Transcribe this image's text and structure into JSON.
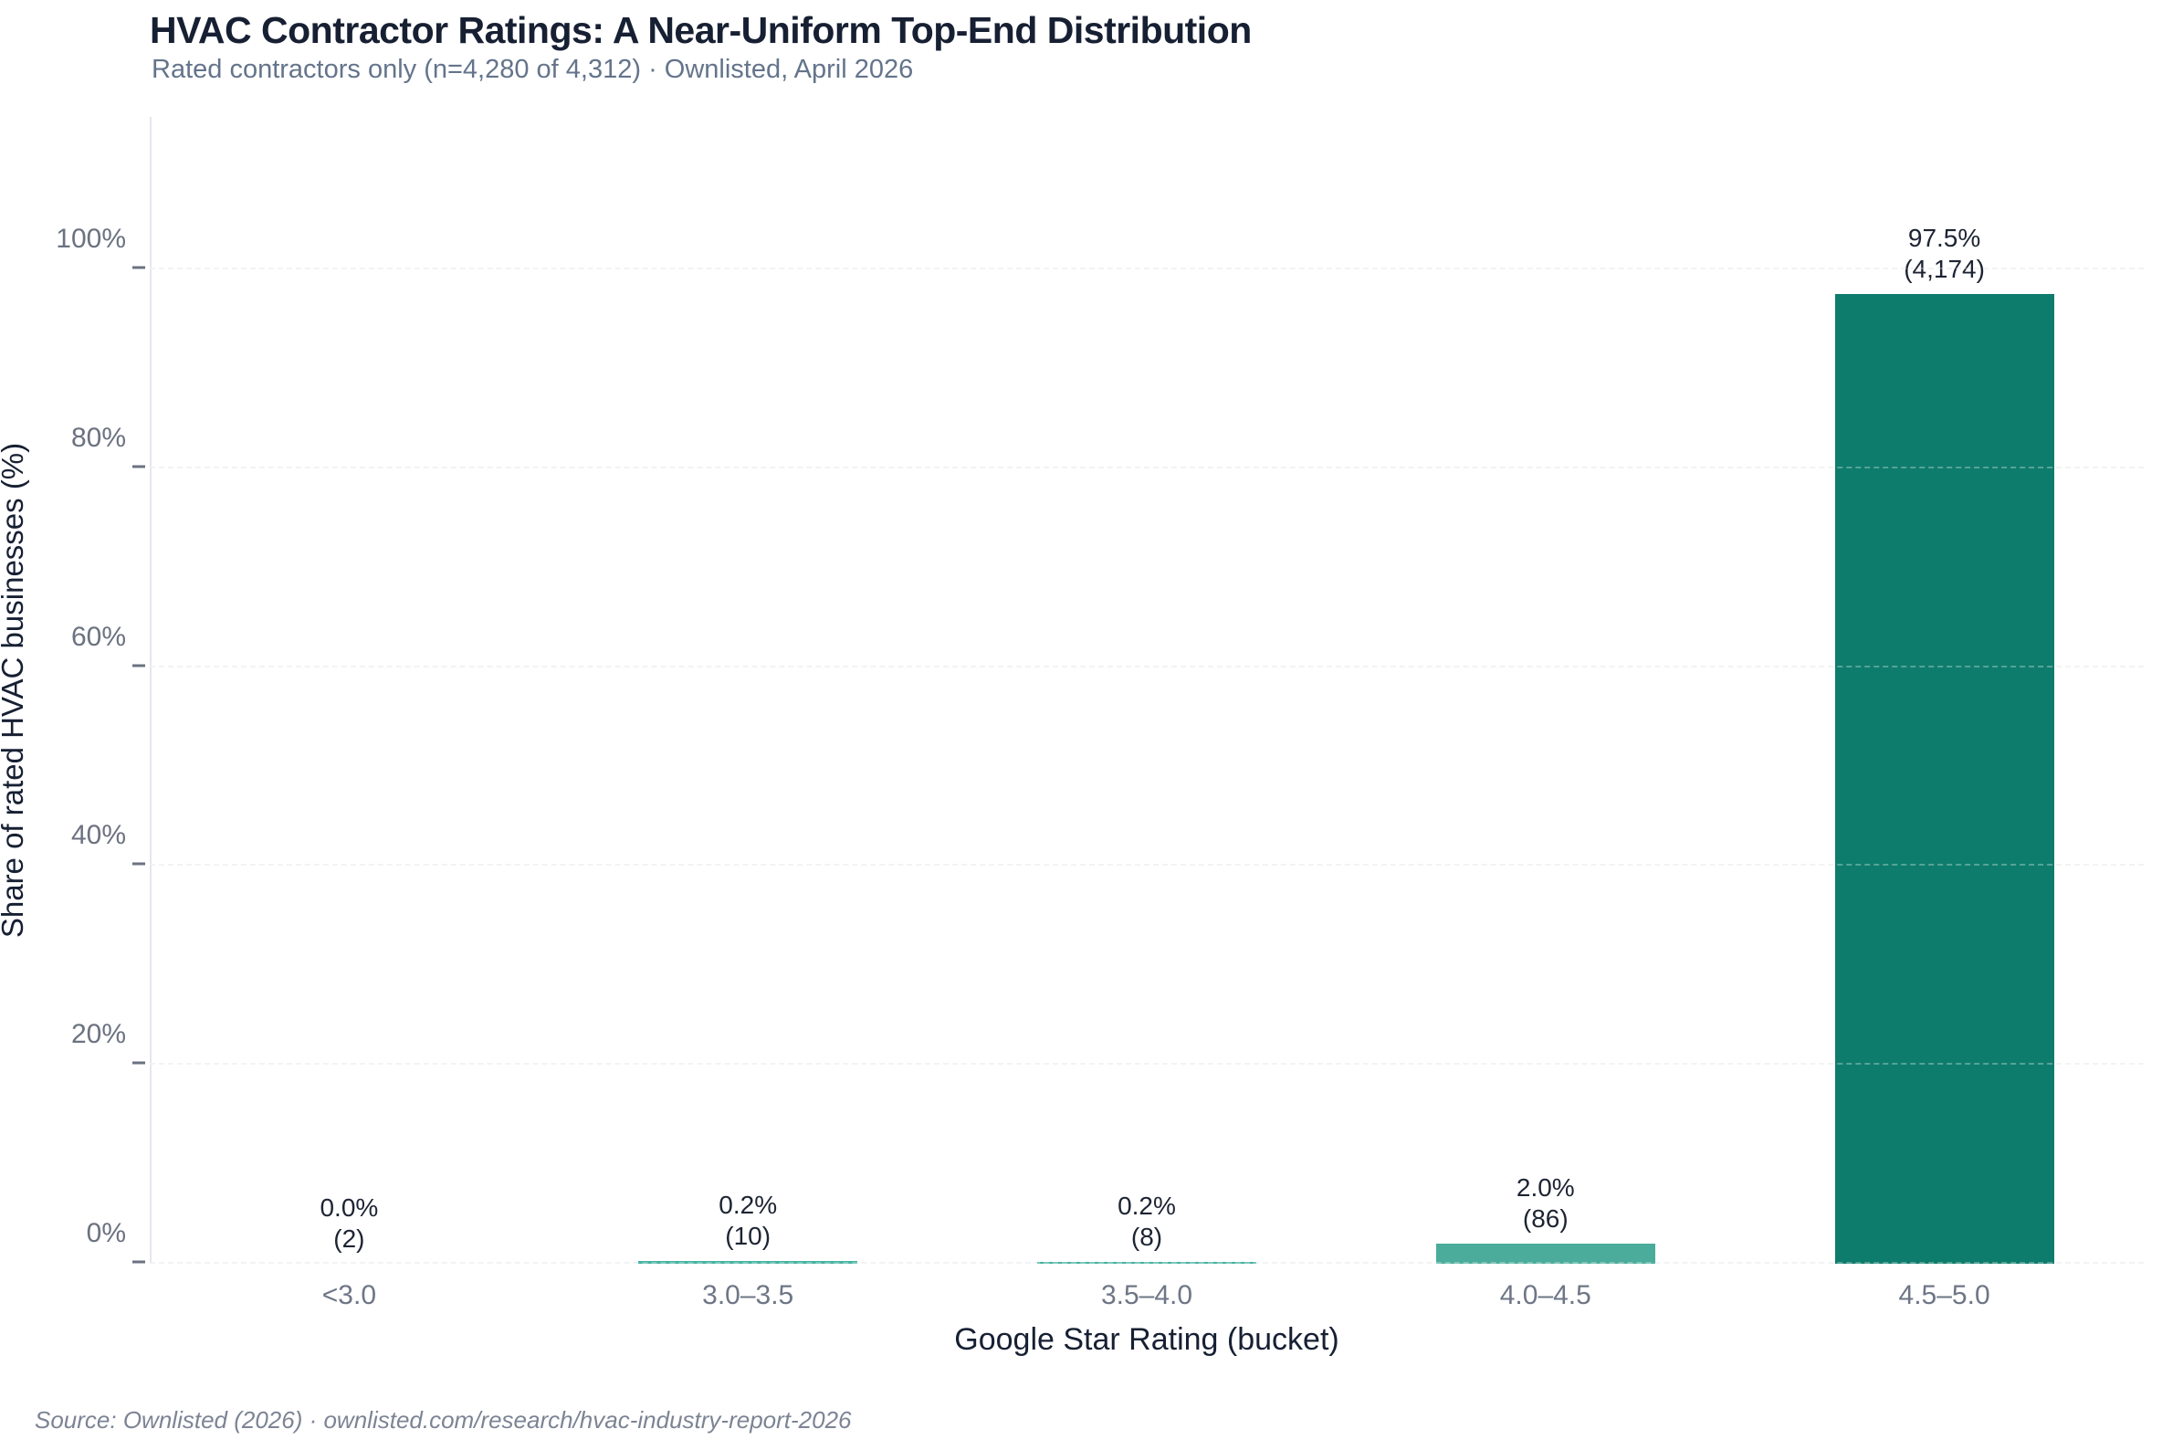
{
  "chart_data": {
    "type": "bar",
    "title": "HVAC Contractor Ratings: A Near-Uniform Top-End Distribution",
    "subtitle": "Rated contractors only (n=4,280 of 4,312) · Ownlisted, April 2026",
    "xlabel": "Google Star Rating (bucket)",
    "ylabel": "Share of rated HVAC businesses (%)",
    "categories": [
      "<3.0",
      "3.0–3.5",
      "3.5–4.0",
      "4.0–4.5",
      "4.5–5.0"
    ],
    "values_pct": [
      0.0,
      0.2,
      0.2,
      2.0,
      97.5
    ],
    "counts": [
      2,
      10,
      8,
      86,
      4174
    ],
    "value_labels": [
      [
        "0.0%",
        "(2)"
      ],
      [
        "0.2%",
        "(10)"
      ],
      [
        "0.2%",
        "(8)"
      ],
      [
        "2.0%",
        "(86)"
      ],
      [
        "97.5%",
        "(4,174)"
      ]
    ],
    "bar_heights_pct": [
      0.047,
      0.234,
      0.187,
      2.009,
      97.523
    ],
    "bar_colors": [
      "#45b2a0",
      "#45b2a0",
      "#45b2a0",
      "#4bac9b",
      "#0e7c6c"
    ],
    "ylim": [
      0,
      100
    ],
    "yticks_pct": [
      0,
      20,
      40,
      60,
      80,
      100
    ],
    "ytick_labels": [
      "0%",
      "20%",
      "40%",
      "60%",
      "80%",
      "100%"
    ],
    "grid": "horizontal dashed, light gray",
    "legend": "none",
    "footer": "Source: Ownlisted (2026) · ownlisted.com/research/hvac-industry-report-2026"
  }
}
